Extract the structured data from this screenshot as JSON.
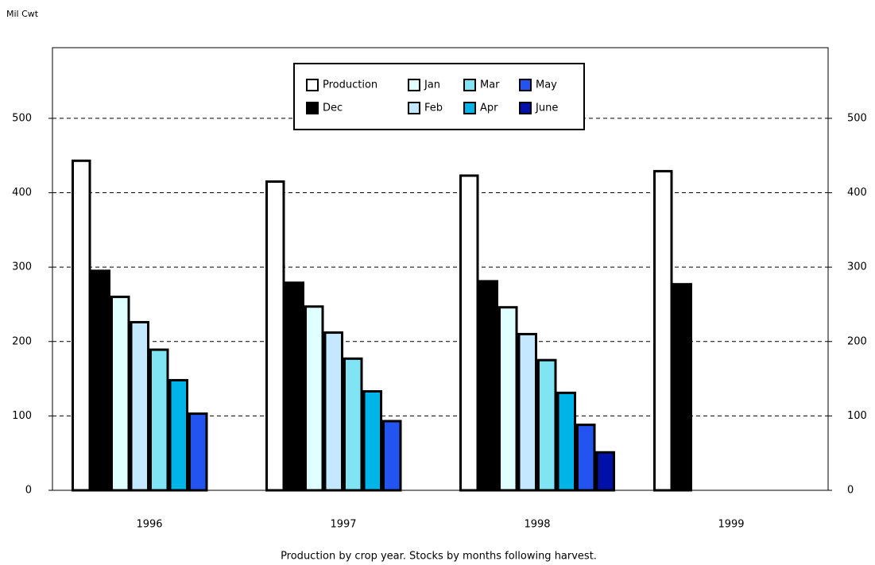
{
  "chart_data": {
    "type": "bar",
    "y_axis_label": "Mil Cwt",
    "note": "Production by crop year.  Stocks by months following harvest.",
    "categories": [
      "1996",
      "1997",
      "1998",
      "1999"
    ],
    "series": [
      {
        "name": "Production",
        "color": "#ffffff",
        "values": [
          443,
          415,
          423,
          429
        ]
      },
      {
        "name": "Dec",
        "color": "#000000",
        "values": [
          295,
          279,
          281,
          277
        ]
      },
      {
        "name": "Jan",
        "color": "#e0ffff",
        "values": [
          260,
          247,
          246,
          null
        ]
      },
      {
        "name": "Feb",
        "color": "#c4e8ff",
        "values": [
          226,
          212,
          210,
          null
        ]
      },
      {
        "name": "Mar",
        "color": "#80e4f4",
        "values": [
          189,
          177,
          175,
          null
        ]
      },
      {
        "name": "Apr",
        "color": "#00b4e8",
        "values": [
          148,
          133,
          131,
          null
        ]
      },
      {
        "name": "May",
        "color": "#2454f0",
        "values": [
          103,
          93,
          88,
          null
        ]
      },
      {
        "name": "June",
        "color": "#0010a8",
        "values": [
          null,
          null,
          51,
          null
        ]
      }
    ],
    "ylim": [
      0,
      595
    ],
    "yticks": [
      0,
      100,
      200,
      300,
      400,
      500
    ],
    "grid": true
  }
}
